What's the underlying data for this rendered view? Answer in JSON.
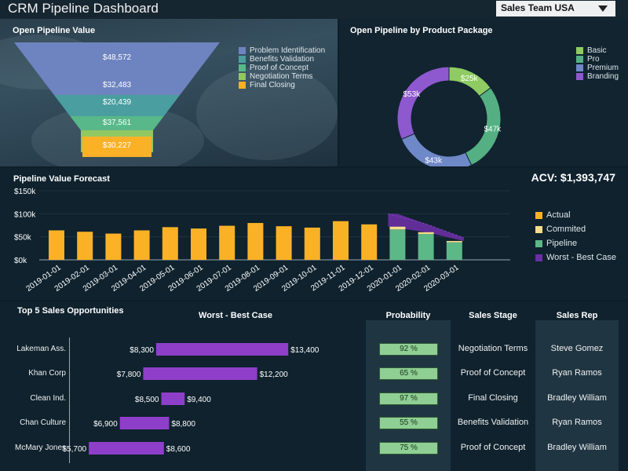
{
  "header": {
    "title": "CRM Pipeline Dashboard",
    "team_filter": "Sales Team USA"
  },
  "funnel": {
    "title": "Open Pipeline Value",
    "stages": [
      {
        "label": "Problem Identification",
        "value": "$48,572",
        "color": "#6e84c0"
      },
      {
        "label": "Benefits Validation",
        "value": "$32,483",
        "color": "#4a9ea0"
      },
      {
        "label": "Proof of Concept",
        "value": "$20,439",
        "color": "#58b889"
      },
      {
        "label": "Negotiation Terms",
        "value": "$37,561",
        "color": "#92c862"
      },
      {
        "label": "Final Closing",
        "value": "$30,227",
        "color": "#fbb126"
      }
    ]
  },
  "donut": {
    "title": "Open Pipeline by Product Package",
    "segments": [
      {
        "label": "Basic",
        "value": 25,
        "display": "$25k",
        "color": "#8fcb62"
      },
      {
        "label": "Pro",
        "value": 47,
        "display": "$47k",
        "color": "#54b083"
      },
      {
        "label": "Premium",
        "value": 43,
        "display": "$43k",
        "color": "#6f88c8"
      },
      {
        "label": "Branding",
        "value": 53,
        "display": "$53k",
        "color": "#8e58cf"
      }
    ]
  },
  "forecast": {
    "title": "Pipeline Value Forecast",
    "acv": "ACV: $1,393,747",
    "legend": [
      {
        "label": "Actual",
        "color": "#fbb126"
      },
      {
        "label": "Commited",
        "color": "#f6dc8c"
      },
      {
        "label": "Pipeline",
        "color": "#5cb887"
      },
      {
        "label": "Worst - Best Case",
        "color": "#6a2fa3"
      }
    ]
  },
  "chart_data": {
    "type": "bar",
    "title": "Pipeline Value Forecast",
    "xlabel": "",
    "ylabel": "",
    "ylim": [
      0,
      150000
    ],
    "yticks": [
      "$0k",
      "$50k",
      "$100k",
      "$150k"
    ],
    "categories": [
      "2019-01-01",
      "2019-02-01",
      "2019-03-01",
      "2019-04-01",
      "2019-05-01",
      "2019-06-01",
      "2019-07-01",
      "2019-08-01",
      "2019-09-01",
      "2019-10-01",
      "2019-11-01",
      "2019-12-01",
      "2020-01-01",
      "2020-02-01",
      "2020-03-01"
    ],
    "series": [
      {
        "name": "Actual",
        "values": [
          64000,
          61000,
          57000,
          64000,
          71000,
          68000,
          74000,
          80000,
          73000,
          70000,
          84000,
          77000,
          0,
          0,
          0
        ]
      },
      {
        "name": "Commited",
        "values": [
          0,
          0,
          0,
          0,
          0,
          0,
          0,
          0,
          0,
          0,
          0,
          0,
          6000,
          4000,
          3000
        ]
      },
      {
        "name": "Pipeline",
        "values": [
          0,
          0,
          0,
          0,
          0,
          0,
          0,
          0,
          0,
          0,
          0,
          0,
          66000,
          56000,
          38000
        ]
      },
      {
        "name": "Worst - Best Case",
        "type": "range",
        "low": [
          null,
          null,
          null,
          null,
          null,
          null,
          null,
          null,
          null,
          null,
          null,
          null,
          72000,
          60000,
          41000
        ],
        "high": [
          null,
          null,
          null,
          null,
          null,
          null,
          null,
          null,
          null,
          null,
          null,
          null,
          100000,
          78000,
          48000
        ]
      }
    ]
  },
  "opportunities": {
    "title": "Top 5 Sales Opportunities",
    "headers": {
      "range": "Worst - Best Case",
      "probability": "Probability",
      "stage": "Sales Stage",
      "rep": "Sales Rep"
    },
    "axis_min": 5000,
    "axis_max": 15000,
    "rows": [
      {
        "company": "Lakeman Ass.",
        "worst": 8300,
        "best": 13400,
        "worst_label": "$8,300",
        "best_label": "$13,400",
        "probability": "92 %",
        "stage": "Negotiation Terms",
        "rep": "Steve Gomez"
      },
      {
        "company": "Khan Corp",
        "worst": 7800,
        "best": 12200,
        "worst_label": "$7,800",
        "best_label": "$12,200",
        "probability": "65 %",
        "stage": "Proof of Concept",
        "rep": "Ryan Ramos"
      },
      {
        "company": "Clean Ind.",
        "worst": 8500,
        "best": 9400,
        "worst_label": "$8,500",
        "best_label": "$9,400",
        "probability": "97 %",
        "stage": "Final Closing",
        "rep": "Bradley William"
      },
      {
        "company": "Chan Culture",
        "worst": 6900,
        "best": 8800,
        "worst_label": "$6,900",
        "best_label": "$8,800",
        "probability": "55 %",
        "stage": "Benefits Validation",
        "rep": "Ryan Ramos"
      },
      {
        "company": "McMary Jones",
        "worst": 5700,
        "best": 8600,
        "worst_label": "$5,700",
        "best_label": "$8,600",
        "probability": "75 %",
        "stage": "Proof of Concept",
        "rep": "Bradley William"
      }
    ],
    "bar_color": "#8e3fc9"
  }
}
